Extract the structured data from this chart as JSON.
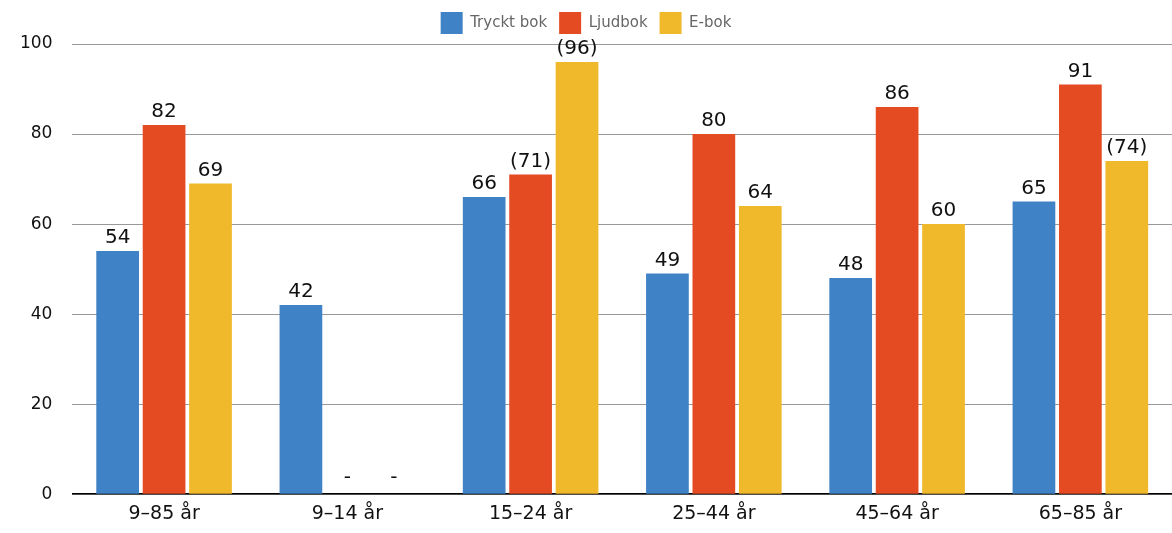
{
  "chart_data": {
    "type": "bar",
    "categories": [
      "9–85 år",
      "9–14 år",
      "15–24 år",
      "25–44 år",
      "45–64 år",
      "65–85 år"
    ],
    "series": [
      {
        "name": "Tryckt bok",
        "color": "#3f82c6",
        "values": [
          54,
          42,
          66,
          49,
          48,
          65
        ],
        "value_labels": [
          "54",
          "42",
          "66",
          "49",
          "48",
          "65"
        ]
      },
      {
        "name": "Ljudbok",
        "color": "#e54b22",
        "values": [
          82,
          null,
          71,
          80,
          86,
          91
        ],
        "value_labels": [
          "82",
          "-",
          "(71)",
          "80",
          "86",
          "91"
        ]
      },
      {
        "name": "E-bok",
        "color": "#f0b92b",
        "values": [
          69,
          null,
          96,
          64,
          60,
          74
        ],
        "value_labels": [
          "69",
          "-",
          "(96)",
          "64",
          "60",
          "(74)"
        ]
      }
    ],
    "ylim": [
      0,
      100
    ],
    "yticks": [
      0,
      20,
      40,
      60,
      80,
      100
    ],
    "grid": "y",
    "legend": "top"
  }
}
